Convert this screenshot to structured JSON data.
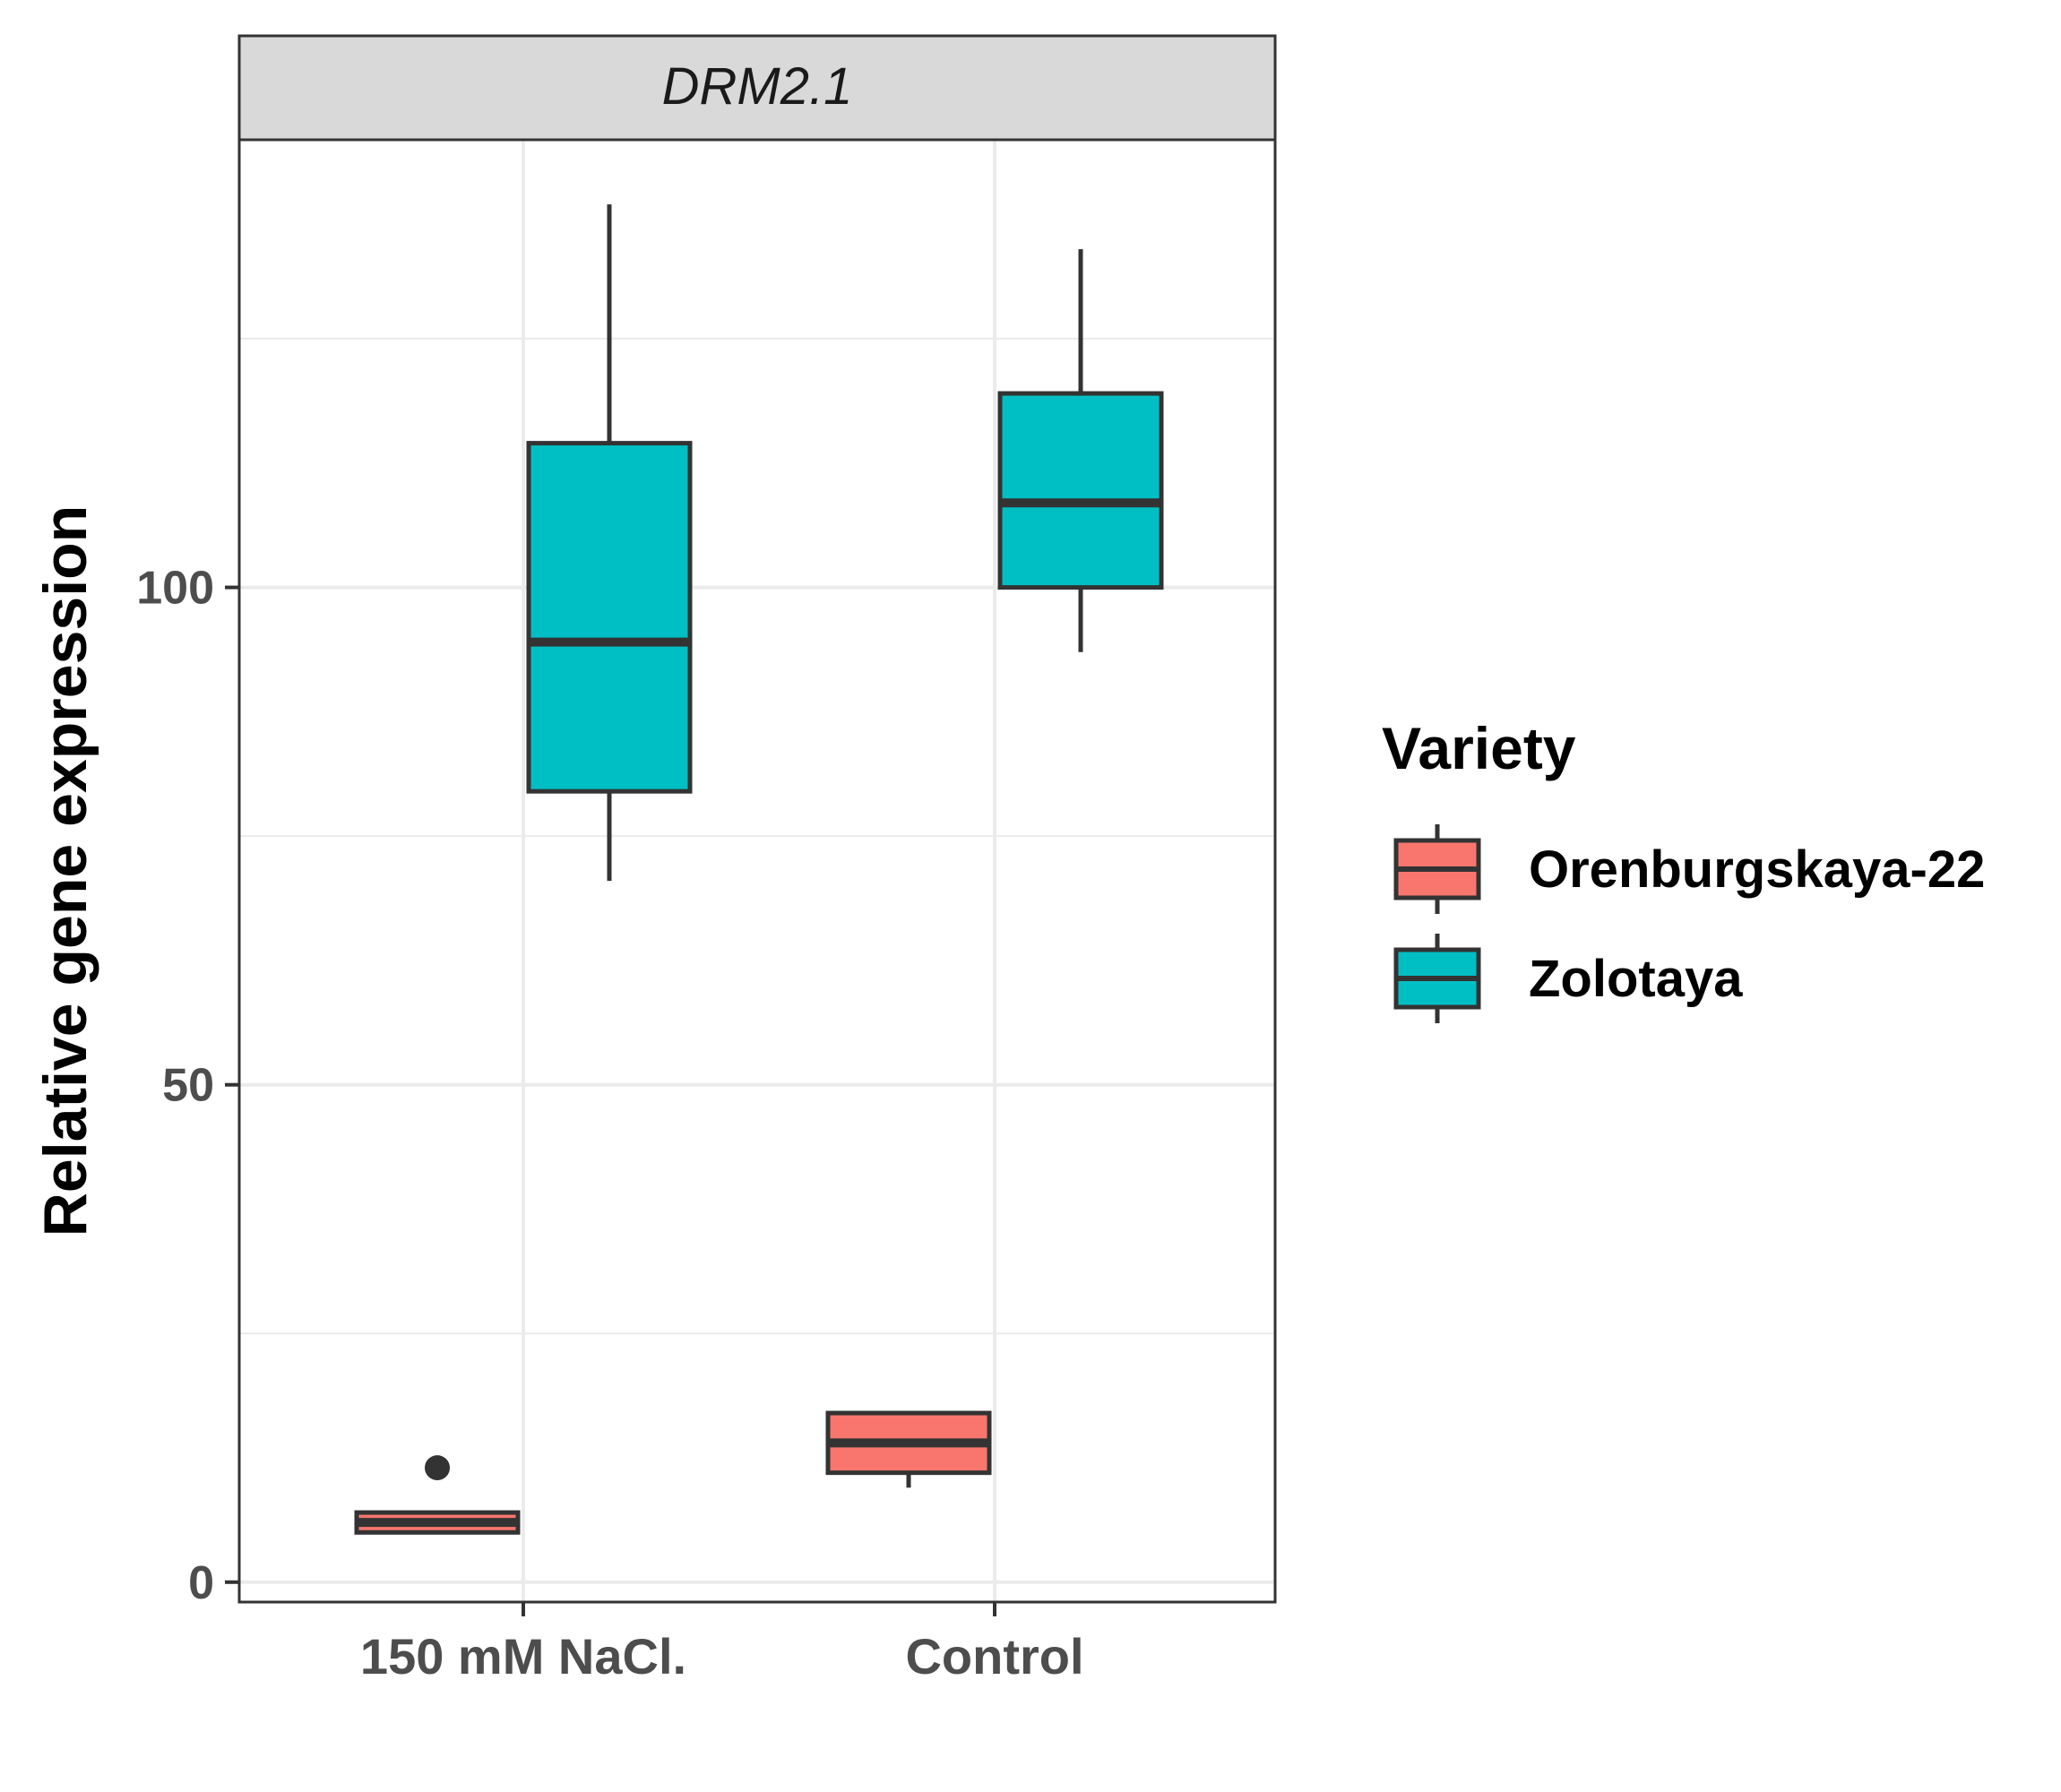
{
  "chart_data": {
    "type": "boxplot",
    "facet_label": "DRM2.1",
    "ylabel": "Relative gene expression",
    "xlabel": "",
    "categories": [
      "150 mM NaCl.",
      "Control"
    ],
    "y_ticks": [
      0,
      50,
      100
    ],
    "y_tick_labels": [
      "0",
      "50",
      "100"
    ],
    "ylim": [
      -2,
      145
    ],
    "grid": true,
    "legend": {
      "title": "Variety",
      "placement": "right",
      "entries": [
        "Orenburgskaya-22",
        "Zolotaya"
      ]
    },
    "series": [
      {
        "name": "Orenburgskaya-22",
        "color": "#F8766D",
        "boxes": [
          {
            "category": "150 mM NaCl.",
            "whisker_low": 5,
            "q1": 5,
            "median": 6,
            "q3": 7,
            "whisker_high": 7,
            "outliers": [
              11.5
            ]
          },
          {
            "category": "Control",
            "whisker_low": 9.5,
            "q1": 11,
            "median": 14,
            "q3": 17,
            "whisker_high": 17,
            "outliers": []
          }
        ]
      },
      {
        "name": "Zolotaya",
        "color": "#00BFC4",
        "boxes": [
          {
            "category": "150 mM NaCl.",
            "whisker_low": 70.5,
            "q1": 79.5,
            "median": 94.5,
            "q3": 114.5,
            "whisker_high": 138.5,
            "outliers": []
          },
          {
            "category": "Control",
            "whisker_low": 93.5,
            "q1": 100,
            "median": 108.5,
            "q3": 119.5,
            "whisker_high": 134,
            "outliers": []
          }
        ]
      }
    ]
  }
}
